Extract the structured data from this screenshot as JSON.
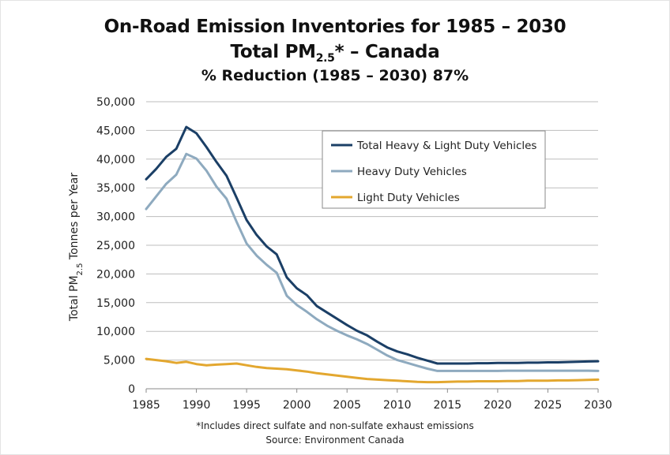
{
  "title": {
    "line1": "On-Road Emission Inventories for 1985 – 2030",
    "line2_pre": "Total PM",
    "line2_sub": "2.5",
    "line2_post": "* – Canada",
    "line3": "% Reduction (1985 – 2030) 87%"
  },
  "footnote": "*Includes direct sulfate and non-sulfate exhaust emissions",
  "source": "Source: Environment Canada",
  "chart_data": {
    "type": "line",
    "ylabel_pre": "Total PM",
    "ylabel_sub": "2.5",
    "ylabel_post": " Tonnes per Year",
    "xlim": [
      1985,
      2030
    ],
    "ylim": [
      0,
      50000
    ],
    "xticks": [
      1985,
      1990,
      1995,
      2000,
      2005,
      2010,
      2015,
      2020,
      2025,
      2030
    ],
    "yticks": [
      0,
      5000,
      10000,
      15000,
      20000,
      25000,
      30000,
      35000,
      40000,
      45000,
      50000
    ],
    "ytick_labels": [
      "0",
      "5,000",
      "10,000",
      "15,000",
      "20,000",
      "25,000",
      "30,000",
      "35,000",
      "40,000",
      "45,000",
      "50,000"
    ],
    "grid": "horizontal",
    "legend": "top-right",
    "x": [
      1985,
      1986,
      1987,
      1988,
      1989,
      1990,
      1991,
      1992,
      1993,
      1994,
      1995,
      1996,
      1997,
      1998,
      1999,
      2000,
      2001,
      2002,
      2003,
      2004,
      2005,
      2006,
      2007,
      2008,
      2009,
      2010,
      2011,
      2012,
      2013,
      2014,
      2015,
      2016,
      2017,
      2018,
      2019,
      2020,
      2021,
      2022,
      2023,
      2024,
      2025,
      2026,
      2027,
      2028,
      2029,
      2030
    ],
    "series": [
      {
        "name": "Total Heavy & Light Duty Vehicles",
        "color": "#1b3f66",
        "values": [
          36500,
          38300,
          40400,
          41800,
          45600,
          44500,
          42100,
          39500,
          37100,
          33300,
          29400,
          26800,
          24800,
          23400,
          19400,
          17500,
          16300,
          14400,
          13300,
          12200,
          11100,
          10100,
          9300,
          8200,
          7200,
          6500,
          6000,
          5400,
          4900,
          4400,
          4400,
          4400,
          4400,
          4450,
          4450,
          4500,
          4500,
          4500,
          4550,
          4550,
          4600,
          4600,
          4650,
          4700,
          4750,
          4800
        ]
      },
      {
        "name": "Heavy Duty Vehicles",
        "color": "#8eaabf",
        "values": [
          31300,
          33500,
          35700,
          37300,
          40900,
          40100,
          38000,
          35200,
          33100,
          29100,
          25300,
          23200,
          21600,
          20200,
          16200,
          14600,
          13400,
          12100,
          11000,
          10100,
          9300,
          8600,
          7800,
          6800,
          5800,
          5000,
          4500,
          4000,
          3500,
          3100,
          3100,
          3100,
          3100,
          3100,
          3100,
          3100,
          3150,
          3150,
          3150,
          3150,
          3150,
          3150,
          3150,
          3150,
          3150,
          3100
        ]
      },
      {
        "name": "Light Duty Vehicles",
        "color": "#e3a72f",
        "values": [
          5200,
          5000,
          4800,
          4500,
          4700,
          4300,
          4100,
          4200,
          4300,
          4400,
          4100,
          3800,
          3600,
          3500,
          3400,
          3200,
          3000,
          2700,
          2500,
          2300,
          2100,
          1900,
          1700,
          1600,
          1500,
          1400,
          1300,
          1200,
          1150,
          1150,
          1200,
          1250,
          1250,
          1300,
          1300,
          1300,
          1350,
          1350,
          1400,
          1400,
          1400,
          1450,
          1450,
          1500,
          1550,
          1600
        ]
      }
    ]
  }
}
